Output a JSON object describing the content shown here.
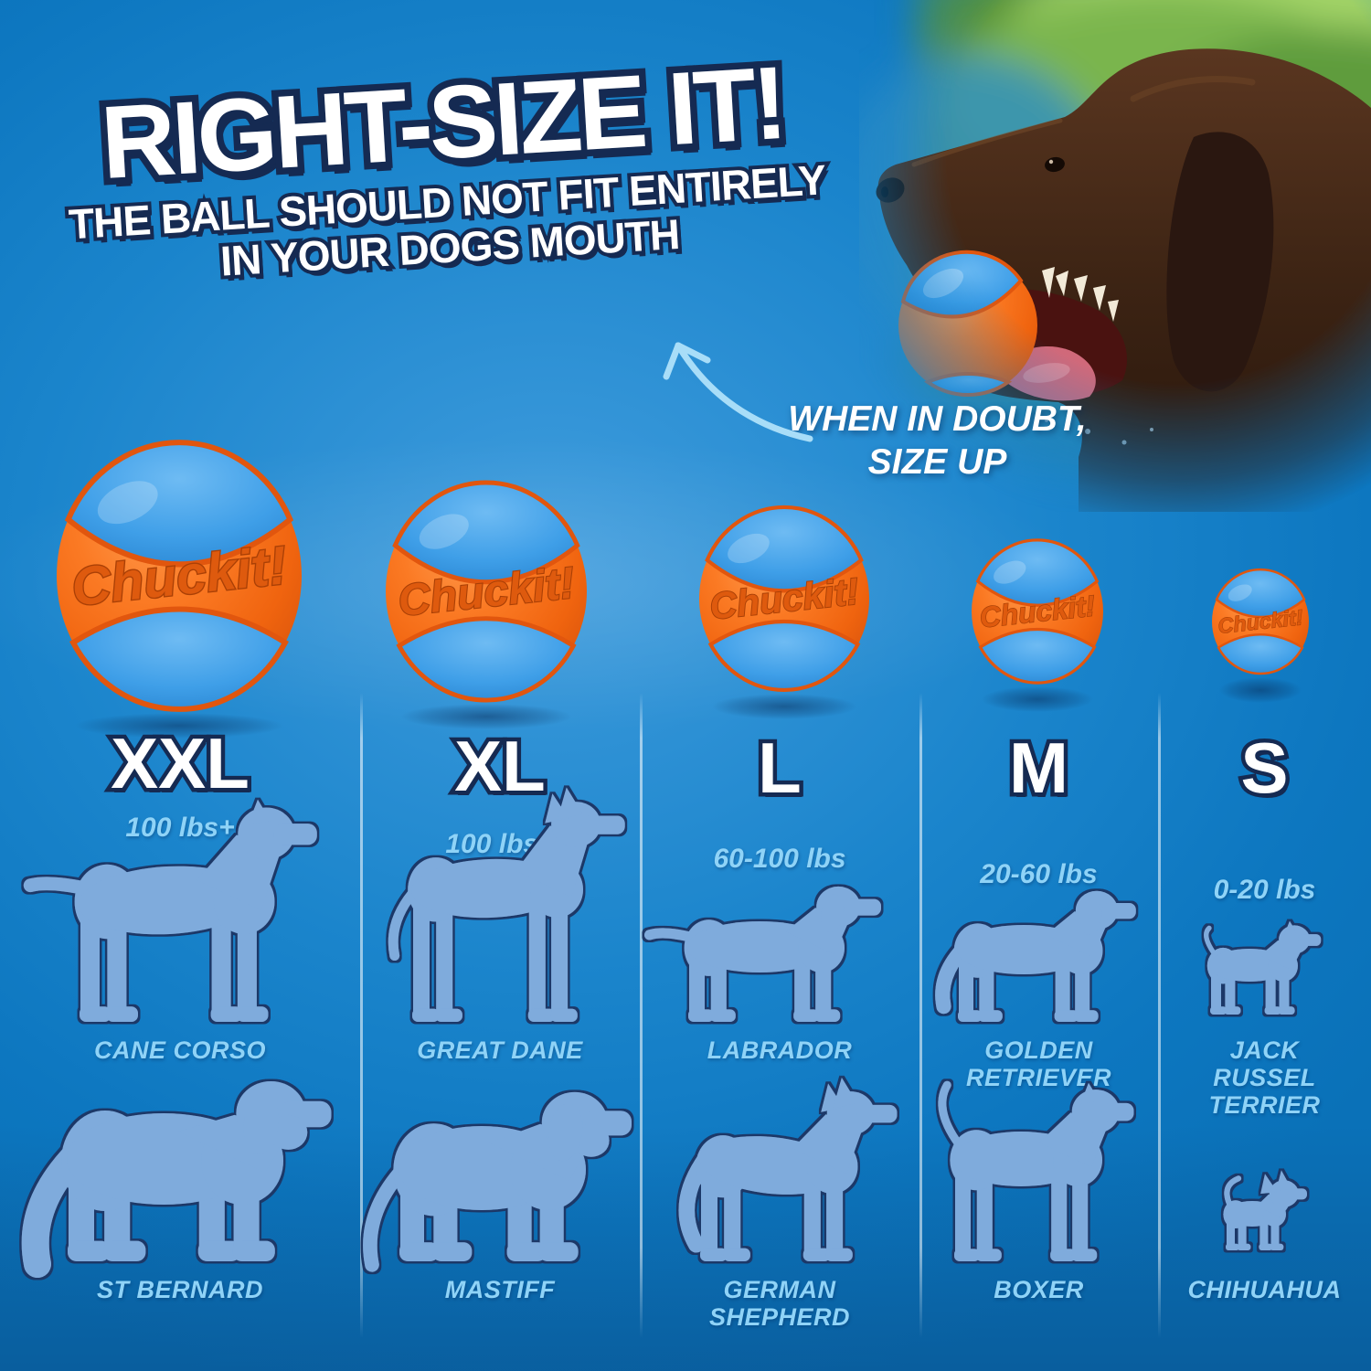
{
  "title": {
    "main": "RIGHT-SIZE IT!",
    "subtitle_line1": "THE BALL SHOULD NOT FIT ENTIRELY",
    "subtitle_line2": "IN YOUR DOGS MOUTH"
  },
  "hint": {
    "line1": "WHEN IN DOUBT,",
    "line2": "SIZE UP"
  },
  "ball_brand": "Chuckit!",
  "size_chart": {
    "columns": [
      {
        "size": "XXL",
        "weight": "100 lbs+",
        "breed_top": "CANE CORSO",
        "breed_bottom": "ST BERNARD"
      },
      {
        "size": "XL",
        "weight": "100 lbs+",
        "breed_top": "GREAT DANE",
        "breed_bottom": "MASTIFF"
      },
      {
        "size": "L",
        "weight": "60-100 lbs",
        "breed_top": "LABRADOR",
        "breed_bottom": "GERMAN SHEPHERD"
      },
      {
        "size": "M",
        "weight": "20-60 lbs",
        "breed_top": "GOLDEN RETRIEVER",
        "breed_bottom": "BOXER"
      },
      {
        "size": "S",
        "weight": "0-20 lbs",
        "breed_top": "JACK RUSSEL TERRIER",
        "breed_bottom": "CHIHUAHUA"
      }
    ]
  },
  "colors": {
    "background_blue": "#1080c8",
    "ball_orange": "#f2690f",
    "ball_blue": "#3f9fe8",
    "accent_light_blue": "#8fd3f7",
    "outline_navy": "#152a52",
    "silhouette_blue": "#7fabdc"
  }
}
